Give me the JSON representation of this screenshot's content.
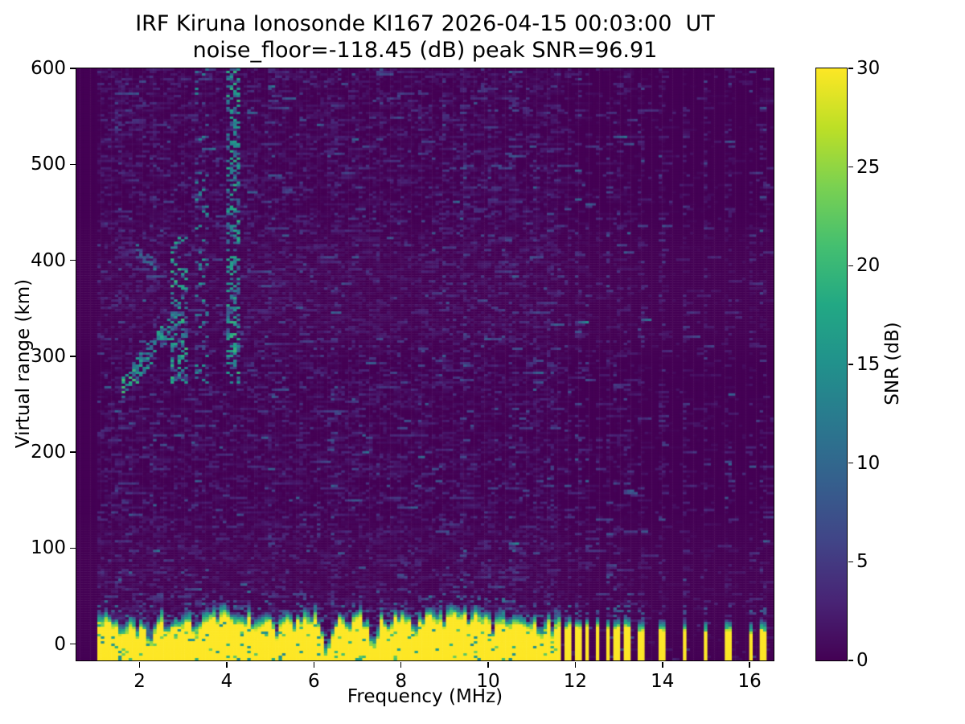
{
  "figure": {
    "title_line1": "IRF Kiruna Ionosonde KI167 2026-04-15 00:03:00  UT",
    "title_line2": "noise_floor=-118.45 (dB) peak SNR=96.91",
    "background_color": "#ffffff",
    "text_color": "#000000"
  },
  "chart_data": {
    "type": "heatmap",
    "title": "IRF Kiruna Ionosonde KI167 2026-04-15 00:03:00  UT\nnoise_floor=-118.45 (dB) peak SNR=96.91",
    "xlabel": "Frequency (MHz)",
    "ylabel": "Virtual range (km)",
    "xlim": [
      0.55,
      16.55
    ],
    "ylim": [
      -17,
      600
    ],
    "xticks": [
      2,
      4,
      6,
      8,
      10,
      12,
      14,
      16
    ],
    "yticks": [
      0,
      100,
      200,
      300,
      400,
      500,
      600
    ],
    "grid": {
      "cols": 200,
      "rows": 246
    },
    "colorbar": {
      "label": "SNR (dB)",
      "vmin": 0,
      "vmax": 30,
      "ticks": [
        0,
        5,
        10,
        15,
        20,
        25,
        30
      ],
      "colormap": "viridis",
      "stops": [
        [
          0,
          "#440154"
        ],
        [
          0.1,
          "#482475"
        ],
        [
          0.2,
          "#414487"
        ],
        [
          0.3,
          "#355f8d"
        ],
        [
          0.4,
          "#2a788e"
        ],
        [
          0.5,
          "#21918c"
        ],
        [
          0.6,
          "#22a884"
        ],
        [
          0.7,
          "#44bf70"
        ],
        [
          0.8,
          "#7ad151"
        ],
        [
          0.9,
          "#bddf26"
        ],
        [
          1,
          "#fde725"
        ]
      ]
    },
    "noise": {
      "seed": 1337,
      "dash_prob": 0.42,
      "left_density": 0.5,
      "left_amp": 1.25,
      "right_density": 0.05,
      "right_amp": 0.9,
      "right_col_density": 0.38,
      "right_col_amp": 1.6,
      "faint_columns": [
        1.5,
        1.8,
        2.3,
        3.3,
        4.5,
        5.05,
        5.3,
        5.7,
        6.45,
        6.9,
        7.45,
        7.95,
        8.45,
        9.0,
        9.45,
        10.05,
        10.55,
        11.05,
        11.45
      ],
      "faint_boost_density": 0.18,
      "faint_boost_amp": 1.5
    },
    "ground_band": {
      "f_min": 1.0,
      "f_max": 11.7,
      "top_km_base": 21,
      "top_km_var": 7,
      "fringe_km_base": 13,
      "fringe_km_var": 5,
      "speck_prob_above": 0.22,
      "embedded_speck_prob": 0.06,
      "notches": [
        [
          1.6,
          0.05,
          16
        ],
        [
          1.95,
          0.04,
          10
        ],
        [
          2.25,
          0.05,
          22
        ],
        [
          2.6,
          0.04,
          12
        ],
        [
          3.3,
          0.04,
          9
        ],
        [
          4.25,
          0.05,
          11
        ],
        [
          4.7,
          0.04,
          8
        ],
        [
          5.15,
          0.05,
          13
        ],
        [
          5.55,
          0.04,
          8
        ],
        [
          6.3,
          0.06,
          34
        ],
        [
          6.75,
          0.04,
          10
        ],
        [
          7.35,
          0.06,
          30
        ],
        [
          7.75,
          0.04,
          10
        ],
        [
          8.35,
          0.05,
          12
        ],
        [
          9.0,
          0.04,
          9
        ],
        [
          9.55,
          0.04,
          10
        ],
        [
          10.15,
          0.05,
          12
        ],
        [
          10.7,
          0.04,
          10
        ],
        [
          11.2,
          0.05,
          14
        ],
        [
          11.5,
          0.04,
          11
        ]
      ],
      "bumps": [
        [
          4.15,
          0.2,
          7
        ],
        [
          9.3,
          0.7,
          5
        ]
      ]
    },
    "stripe_comb": {
      "f_start": 11.78,
      "f_end": 13.3,
      "period": 0.225,
      "duty": 0.5,
      "top_km": 17,
      "fringe_km": 11
    },
    "isolated_stripes": {
      "freqs": [
        13.5,
        14.0,
        14.5,
        15.0,
        15.5,
        16.05,
        16.32
      ],
      "half_width": 0.055,
      "top_km": 13,
      "fringe_km": 12
    },
    "echo_traces": [
      {
        "kind": "diag",
        "f0": 1.62,
        "km0": 266,
        "f1": 2.95,
        "km1": 345,
        "width_km": 13,
        "density": 0.55,
        "vmin": 7,
        "vmax": 22
      },
      {
        "kind": "diag",
        "f0": 1.95,
        "km0": 409,
        "f1": 2.5,
        "km1": 391,
        "width_km": 7,
        "density": 0.5,
        "vmin": 6,
        "vmax": 16
      },
      {
        "kind": "column",
        "f0": 2.75,
        "f1": 3.1,
        "km0": 272,
        "km1": 430,
        "density": 0.45,
        "vmin": 5,
        "vmax": 20,
        "fade_top": 0.5
      },
      {
        "kind": "column",
        "f0": 3.3,
        "f1": 3.6,
        "km0": 272,
        "km1": 600,
        "density": 0.22,
        "vmin": 4,
        "vmax": 16,
        "fade_top": 0.6
      },
      {
        "kind": "column",
        "f0": 3.98,
        "f1": 4.3,
        "km0": 272,
        "km1": 600,
        "density": 0.5,
        "vmin": 6,
        "vmax": 20,
        "fade_top": 0.15
      }
    ]
  }
}
